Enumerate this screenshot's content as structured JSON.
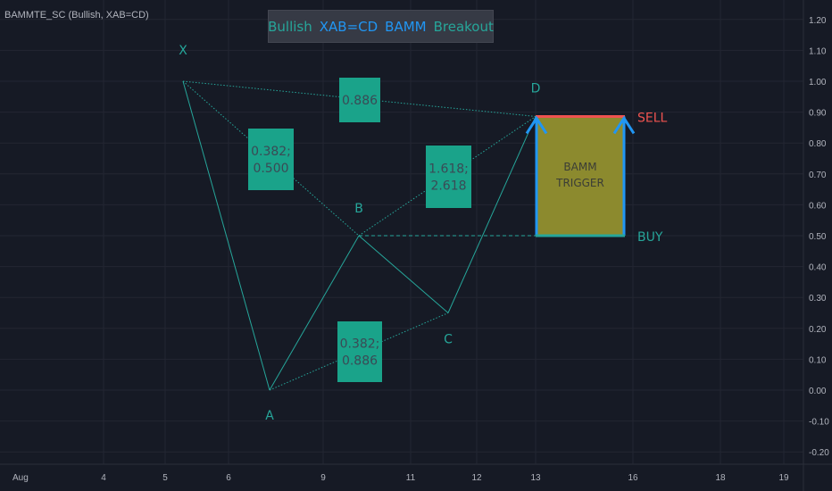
{
  "indicator_legend": "BAMMTE_SC (Bullish, XAB=CD)",
  "banner": [
    {
      "text": "Bullish",
      "color": "#26a69a"
    },
    {
      "text": "XAB=CD",
      "color": "#2196f3"
    },
    {
      "text": "BAMM",
      "color": "#2196f3"
    },
    {
      "text": "Breakout",
      "color": "#26a69a"
    }
  ],
  "colors": {
    "background": "#161a25",
    "grid": "#232632",
    "pattern": "#26a69a",
    "ratio_box": "#1aa38a",
    "ratio_text": "#3a4a55",
    "trigger_fill": "#8c8a2e",
    "trigger_edge": "#2196f3",
    "sell": "#ef5350",
    "buy": "#26a69a",
    "axis_text": "#b2b5be"
  },
  "chart_data": {
    "type": "line",
    "title": "",
    "ylim": [
      -0.25,
      1.25
    ],
    "y_ticks": [
      "1.20",
      "1.10",
      "1.00",
      "0.90",
      "0.80",
      "0.70",
      "0.60",
      "0.50",
      "0.40",
      "0.30",
      "0.20",
      "0.10",
      "0.00",
      "-0.10",
      "-0.20"
    ],
    "x_ticks": [
      "Aug",
      "4",
      "5",
      "6",
      "9",
      "11",
      "12",
      "13",
      "16",
      "18",
      "19"
    ],
    "grid": true,
    "points": [
      {
        "label": "X",
        "x": "5",
        "y": 1.0
      },
      {
        "label": "A",
        "x": "7",
        "y": 0.0
      },
      {
        "label": "B",
        "x": "10",
        "y": 0.5
      },
      {
        "label": "C",
        "x": "11.5",
        "y": 0.25
      },
      {
        "label": "D",
        "x": "13",
        "y": 0.886
      }
    ],
    "ratios": [
      {
        "text": "0.886",
        "between": "X-D"
      },
      {
        "text": "0.382;\n0.500",
        "between": "X-B"
      },
      {
        "text": "1.618;\n2.618",
        "between": "B-D"
      },
      {
        "text": "0.382;\n0.886",
        "between": "A-C"
      }
    ],
    "trigger_box": {
      "label_1": "BAMM",
      "label_2": "TRIGGER",
      "top": 0.886,
      "bottom": 0.5,
      "sell_label": "SELL",
      "buy_label": "BUY"
    }
  }
}
